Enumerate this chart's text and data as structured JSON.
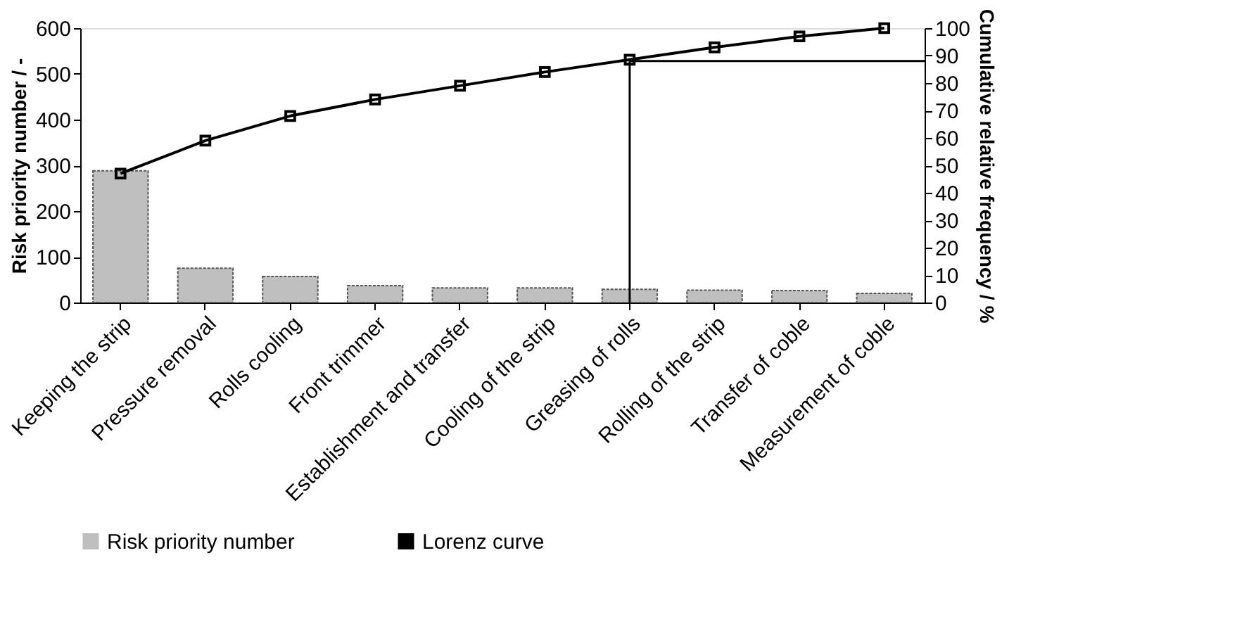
{
  "chart_data": {
    "type": "bar",
    "categories": [
      "Keeping the strip",
      "Pressure removal",
      "Rolls cooling",
      "Front trimmer",
      "Establishment and transfer",
      "Cooling of the strip",
      "Greasing of rolls",
      "Rolling of the strip",
      "Transfer of coble",
      "Measurement of coble"
    ],
    "ylabel": "Risk priority number / -",
    "y2label": "Cumulative relative frequency / %",
    "ylim": [
      0,
      600
    ],
    "yticks": [
      0,
      100,
      200,
      300,
      400,
      500,
      600
    ],
    "y2lim": [
      0,
      100
    ],
    "y2ticks": [
      0,
      10,
      20,
      30,
      40,
      50,
      60,
      70,
      80,
      90,
      100
    ],
    "series": [
      {
        "name": "Risk priority number",
        "color": "#bfbfbf",
        "values": [
          288,
          75,
          57,
          37,
          32,
          32,
          29,
          27,
          26,
          20
        ]
      },
      {
        "name": "Lorenz curve",
        "type": "line",
        "axis": "y2",
        "color": "#000000",
        "marker": "square",
        "values": [
          47,
          59,
          68,
          74,
          79,
          84,
          88.5,
          93,
          97,
          100
        ]
      }
    ],
    "ref_lines": [
      {
        "axis": "y2",
        "value": 88
      },
      {
        "axis": "x",
        "value": "Greasing of rolls"
      }
    ],
    "legend": "bottom",
    "grid": false
  }
}
